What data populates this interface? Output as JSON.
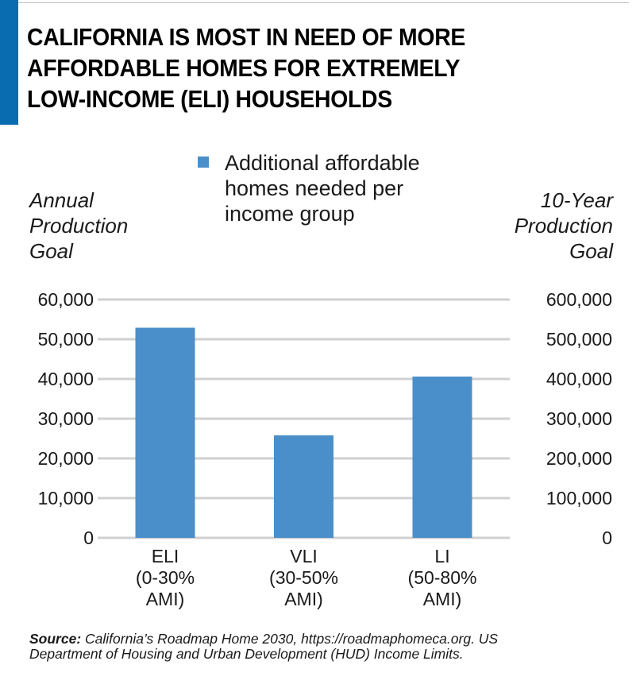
{
  "colors": {
    "accent": "#0a6cb0",
    "bar": "#4a8fc9",
    "grid": "#d0d0d0",
    "rule": "#bdbdbd"
  },
  "title_lines": [
    "CALIFORNIA IS MOST IN NEED OF MORE",
    "AFFORDABLE HOMES FOR EXTREMELY",
    "LOW-INCOME (ELI) HOUSEHOLDS"
  ],
  "source": {
    "label": "Source:",
    "line1": " California’s Roadmap Home 2030, https://roadmaphomeca.org. US",
    "line2": "Department of Housing and Urban Development (HUD) Income Limits."
  },
  "chart_data": {
    "type": "bar",
    "title": "CALIFORNIA IS MOST IN NEED OF MORE AFFORDABLE HOMES FOR EXTREMELY LOW-INCOME (ELI) HOUSEHOLDS",
    "categories": [
      [
        "ELI",
        "(0-30%",
        "AMI)"
      ],
      [
        "VLI",
        "(30-50%",
        "AMI)"
      ],
      [
        "LI",
        "(50-80%",
        "AMI)"
      ]
    ],
    "series": [
      {
        "name": "Additional affordable homes needed per income group",
        "legend_lines": [
          "Additional affordable",
          "homes needed per",
          "income group"
        ],
        "values": [
          52900,
          25800,
          40600
        ]
      }
    ],
    "ylabel_lines": [
      "Annual",
      "Production",
      "Goal"
    ],
    "y2label_lines": [
      "10-Year",
      "Production",
      "Goal"
    ],
    "ylim": [
      0,
      60000
    ],
    "y2lim": [
      0,
      600000
    ],
    "yticks": [
      "0",
      "10,000",
      "20,000",
      "30,000",
      "40,000",
      "50,000",
      "60,000"
    ],
    "y2ticks": [
      "0",
      "100,000",
      "200,000",
      "300,000",
      "400,000",
      "500,000",
      "600,000"
    ],
    "grid": true,
    "legend_position": "top-center"
  }
}
